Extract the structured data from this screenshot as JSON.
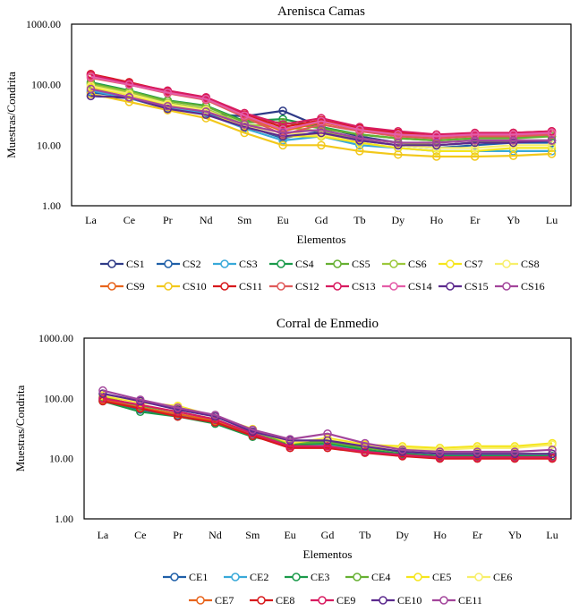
{
  "chart_data": [
    {
      "type": "line",
      "title": "Arenisca Camas",
      "xlabel": "Elementos",
      "ylabel": "Muestras/Condrita",
      "yscale": "log",
      "ylim": [
        1,
        1000
      ],
      "yticks": [
        "1.00",
        "10.00",
        "100.00",
        "1000.00"
      ],
      "categories": [
        "La",
        "Ce",
        "Pr",
        "Nd",
        "Sm",
        "Eu",
        "Gd",
        "Tb",
        "Dy",
        "Ho",
        "Er",
        "Yb",
        "Lu"
      ],
      "series": [
        {
          "name": "CS1",
          "color": "#2e3a87",
          "values": [
            65,
            60,
            40,
            33,
            30,
            37,
            20,
            14,
            11,
            10,
            11,
            12,
            12
          ]
        },
        {
          "name": "CS2",
          "color": "#1f5fa8",
          "values": [
            75,
            62,
            42,
            34,
            21,
            13,
            17,
            12,
            10,
            9,
            10,
            11,
            11
          ]
        },
        {
          "name": "CS3",
          "color": "#38a9d9",
          "values": [
            80,
            60,
            42,
            33,
            19,
            12,
            14,
            10,
            9,
            8,
            8,
            8,
            8
          ]
        },
        {
          "name": "CS4",
          "color": "#1a9a4a",
          "values": [
            110,
            80,
            55,
            45,
            25,
            27,
            20,
            15,
            13,
            12,
            13,
            14,
            14
          ]
        },
        {
          "name": "CS5",
          "color": "#66b032",
          "values": [
            105,
            78,
            54,
            44,
            24,
            24,
            19,
            15,
            13,
            12,
            13,
            13,
            14
          ]
        },
        {
          "name": "CS6",
          "color": "#9cc83b",
          "values": [
            100,
            75,
            50,
            40,
            22,
            20,
            17,
            13,
            11,
            10,
            11,
            12,
            12
          ]
        },
        {
          "name": "CS7",
          "color": "#f5e51b",
          "values": [
            90,
            68,
            46,
            37,
            20,
            14,
            14,
            11,
            9,
            8,
            8,
            9,
            9
          ]
        },
        {
          "name": "CS8",
          "color": "#f7ef6a",
          "values": [
            95,
            70,
            48,
            38,
            21,
            16,
            15,
            12,
            10,
            9,
            9,
            10,
            10
          ]
        },
        {
          "name": "CS9",
          "color": "#e8641c",
          "values": [
            140,
            105,
            75,
            58,
            30,
            17,
            24,
            18,
            15,
            14,
            15,
            15,
            16
          ]
        },
        {
          "name": "CS10",
          "color": "#f2c81b",
          "values": [
            70,
            52,
            38,
            28,
            16,
            10,
            10,
            8,
            7,
            6.5,
            6.5,
            6.7,
            7.2
          ]
        },
        {
          "name": "CS11",
          "color": "#d7191c",
          "values": [
            150,
            110,
            78,
            60,
            32,
            20,
            26,
            19,
            16,
            14,
            15,
            16,
            17
          ]
        },
        {
          "name": "CS12",
          "color": "#e05a5a",
          "values": [
            130,
            100,
            72,
            56,
            29,
            15,
            22,
            17,
            14,
            13,
            14,
            14,
            15
          ]
        },
        {
          "name": "CS13",
          "color": "#d81b60",
          "values": [
            145,
            105,
            80,
            62,
            34,
            22,
            28,
            20,
            17,
            15,
            16,
            16,
            17
          ]
        },
        {
          "name": "CS14",
          "color": "#e45ca8",
          "values": [
            135,
            100,
            74,
            58,
            31,
            18,
            25,
            18,
            15,
            14,
            15,
            15,
            16
          ]
        },
        {
          "name": "CS15",
          "color": "#5c2a8e",
          "values": [
            65,
            62,
            40,
            32,
            20,
            14,
            16,
            12,
            10,
            10,
            11,
            11,
            12
          ]
        },
        {
          "name": "CS16",
          "color": "#a3459b",
          "values": [
            85,
            62,
            44,
            36,
            22,
            16,
            18,
            13,
            11,
            11,
            12,
            12,
            12
          ]
        }
      ]
    },
    {
      "type": "line",
      "title": "Corral de Enmedio",
      "xlabel": "Elementos",
      "ylabel": "Muestras/Condrita",
      "yscale": "log",
      "ylim": [
        1,
        1000
      ],
      "yticks": [
        "1.00",
        "10.00",
        "100.00",
        "1000.00"
      ],
      "categories": [
        "La",
        "Ce",
        "Pr",
        "Nd",
        "Sm",
        "Eu",
        "Gd",
        "Tb",
        "Dy",
        "Ho",
        "Er",
        "Yb",
        "Lu"
      ],
      "series": [
        {
          "name": "CE1",
          "color": "#1f5fa8",
          "values": [
            95,
            65,
            52,
            40,
            24,
            16,
            16,
            13,
            12,
            11,
            11,
            11,
            11
          ]
        },
        {
          "name": "CE2",
          "color": "#38a9d9",
          "values": [
            100,
            70,
            55,
            42,
            25,
            17,
            17,
            13,
            12,
            11,
            11,
            11,
            11
          ]
        },
        {
          "name": "CE3",
          "color": "#1a9a4a",
          "values": [
            90,
            60,
            50,
            38,
            23,
            17,
            18,
            14,
            12,
            11,
            11,
            11,
            11
          ]
        },
        {
          "name": "CE4",
          "color": "#66b032",
          "values": [
            105,
            75,
            60,
            45,
            26,
            18,
            19,
            15,
            13,
            12,
            12,
            12,
            12
          ]
        },
        {
          "name": "CE5",
          "color": "#f5e51b",
          "values": [
            110,
            85,
            75,
            50,
            31,
            18,
            22,
            17,
            16,
            15,
            16,
            16,
            18
          ]
        },
        {
          "name": "CE6",
          "color": "#f7ef6a",
          "values": [
            115,
            88,
            72,
            50,
            30,
            19,
            21,
            16,
            15,
            14,
            15,
            15,
            17
          ]
        },
        {
          "name": "CE7",
          "color": "#e8641c",
          "values": [
            95,
            70,
            55,
            42,
            24,
            16,
            16,
            13,
            11,
            10.5,
            10.5,
            10.5,
            10.5
          ]
        },
        {
          "name": "CE8",
          "color": "#d7191c",
          "values": [
            90,
            68,
            50,
            40,
            24,
            15,
            15,
            12.5,
            11,
            10,
            10,
            10,
            10
          ]
        },
        {
          "name": "CE9",
          "color": "#d81b60",
          "values": [
            100,
            78,
            60,
            45,
            26,
            16,
            16,
            13,
            11.5,
            10.5,
            10.5,
            10.5,
            10.5
          ]
        },
        {
          "name": "CE10",
          "color": "#5c2a8e",
          "values": [
            120,
            90,
            65,
            50,
            28,
            20,
            20,
            16,
            13,
            12,
            12,
            12,
            12
          ]
        },
        {
          "name": "CE11",
          "color": "#a3459b",
          "values": [
            135,
            95,
            70,
            53,
            30,
            21,
            26,
            18,
            14,
            13,
            13,
            13,
            14
          ]
        }
      ]
    }
  ]
}
